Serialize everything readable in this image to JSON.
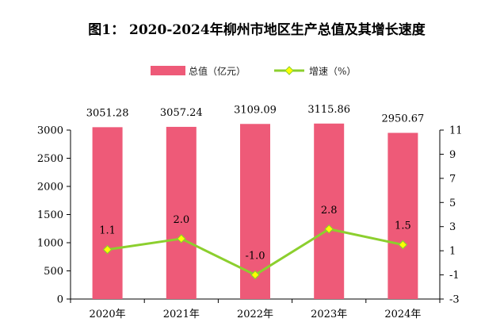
{
  "chart_data": {
    "type": "bar",
    "title": "图1：  2020-2024年柳州市地区生产总值及其增长速度",
    "categories": [
      "2020年",
      "2021年",
      "2022年",
      "2023年",
      "2024年"
    ],
    "series": [
      {
        "name": "总值（亿元）",
        "type": "bar",
        "axis": "left",
        "values": [
          3051.28,
          3057.24,
          3109.09,
          3115.86,
          2950.67
        ],
        "labels": [
          "3051.28",
          "3057.24",
          "3109.09",
          "3115.86",
          "2950.67"
        ],
        "color": "#ee5a78"
      },
      {
        "name": "增速（%）",
        "type": "line",
        "axis": "right",
        "values": [
          1.1,
          2.0,
          -1.0,
          2.8,
          1.5
        ],
        "labels": [
          "1.1",
          "2.0",
          "-1.0",
          "2.8",
          "1.5"
        ],
        "color": "#8ccf2e",
        "marker_color": "#ffff00"
      }
    ],
    "y_left": {
      "ylim": [
        0,
        3000
      ],
      "ticks": [
        "0",
        "500",
        "1000",
        "1500",
        "2000",
        "2500",
        "3000"
      ]
    },
    "y_right": {
      "ylim": [
        -3,
        11
      ],
      "ticks": [
        "-3",
        "-1",
        "1",
        "3",
        "5",
        "7",
        "9",
        "11"
      ]
    },
    "legend": "top-center",
    "grid": false
  }
}
